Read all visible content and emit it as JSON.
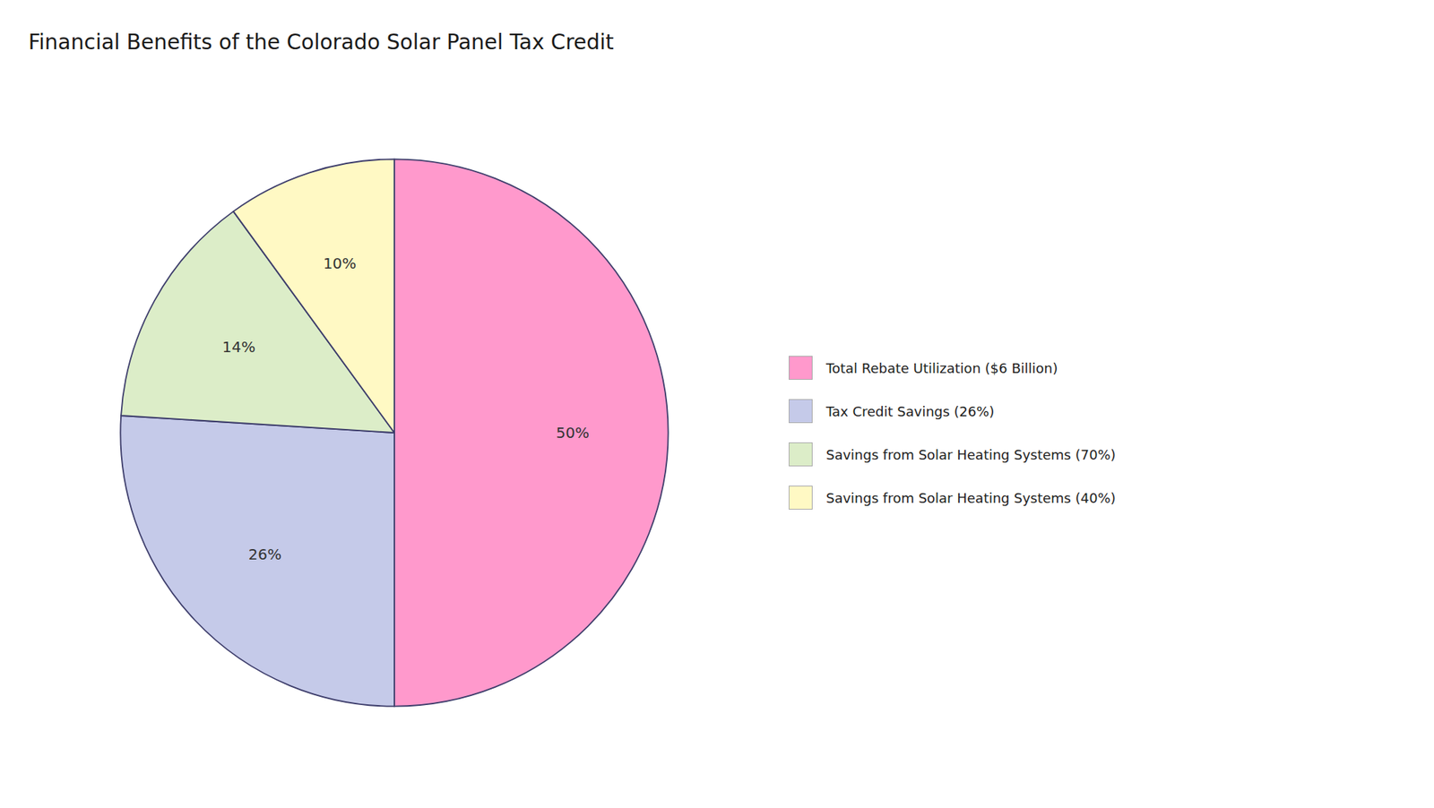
{
  "chart_data": {
    "type": "pie",
    "title": "Financial Benefits of the Colorado Solar Panel Tax Credit",
    "categories": [
      "Total Rebate Utilization ($6 Billion)",
      "Tax Credit Savings (26%)",
      "Savings from Solar Heating Systems (70%)",
      "Savings from Solar Heating Systems (40%)"
    ],
    "values": [
      50,
      26,
      14,
      10
    ],
    "value_labels": [
      "50%",
      "26%",
      "14%",
      "10%"
    ],
    "colors": [
      "#FF99CC",
      "#C5CAE9",
      "#DCEDC8",
      "#FFF9C4"
    ],
    "data_labels": true,
    "legend": "right"
  }
}
